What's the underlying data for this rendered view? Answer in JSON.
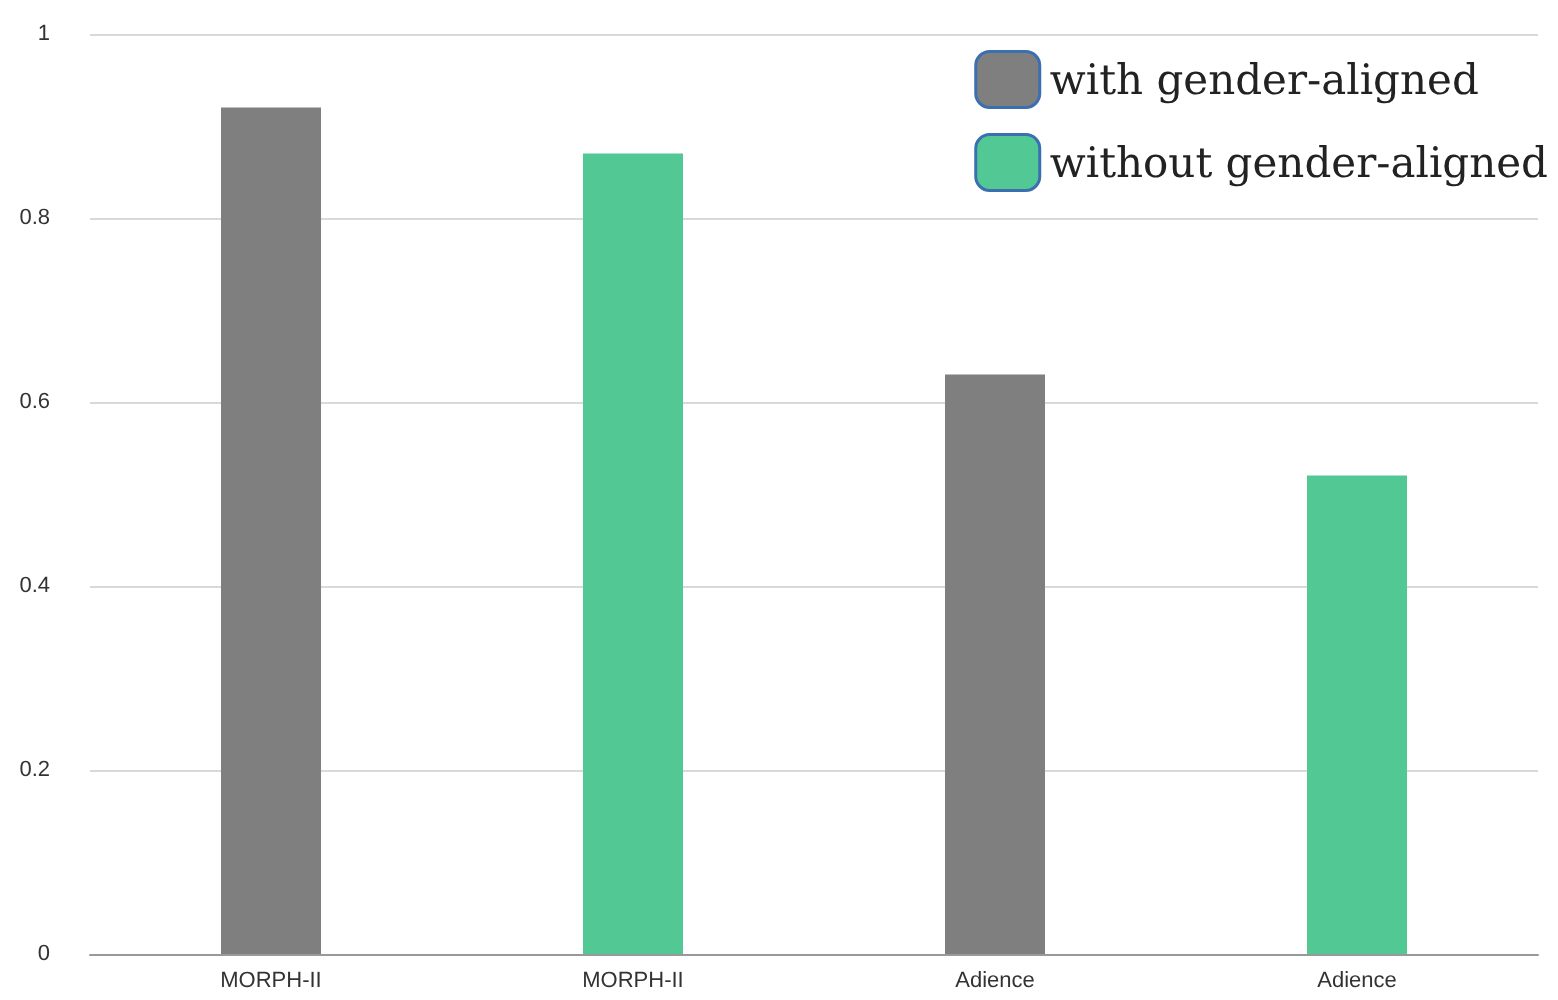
{
  "chart_data": {
    "type": "bar",
    "categories": [
      "MORPH-II",
      "MORPH-II",
      "Adience",
      "Adience"
    ],
    "series": [
      {
        "name": "with gender-aligned",
        "color": "#7f7f7f",
        "values": [
          0.92,
          null,
          0.63,
          null
        ]
      },
      {
        "name": "without gender-aligned",
        "color": "#52c995",
        "values": [
          null,
          0.87,
          null,
          0.52
        ]
      }
    ],
    "ylim": [
      0,
      1
    ],
    "yticks": [
      0,
      0.2,
      0.4,
      0.6,
      0.8,
      1
    ],
    "grid": "y",
    "legend": "top right"
  }
}
